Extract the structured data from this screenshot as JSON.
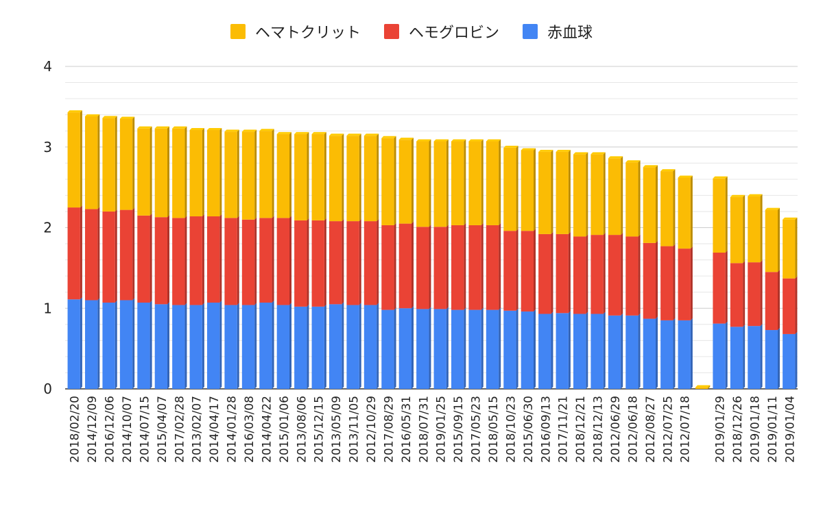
{
  "colors": {
    "hematocrit": "#fbbc04",
    "hemoglobin": "#ea4335",
    "rbc": "#4285f4",
    "grid": "#cccccc",
    "minor_grid": "#e6e6e6"
  },
  "legend": [
    {
      "name": "ヘマトクリット",
      "color": "#fbbc04"
    },
    {
      "name": "ヘモグロビン",
      "color": "#ea4335"
    },
    {
      "name": "赤血球",
      "color": "#4285f4"
    }
  ],
  "chart_data": {
    "type": "bar",
    "stacked": true,
    "grid": true,
    "legend_position": "top",
    "ylim": [
      0,
      4
    ],
    "yticks": [
      0,
      1,
      2,
      3,
      4
    ],
    "categories": [
      "2018/02/20",
      "2014/12/09",
      "2016/12/06",
      "2014/10/07",
      "2014/07/15",
      "2015/04/07",
      "2017/02/28",
      "2013/02/07",
      "2014/04/17",
      "2014/01/28",
      "2016/03/08",
      "2014/04/22",
      "2015/01/06",
      "2013/08/06",
      "2015/12/15",
      "2013/05/09",
      "2013/11/05",
      "2012/10/29",
      "2017/08/29",
      "2016/05/31",
      "2018/07/31",
      "2019/01/25",
      "2015/09/15",
      "2017/05/23",
      "2018/05/15",
      "2018/10/23",
      "2015/06/30",
      "2016/09/13",
      "2017/11/21",
      "2018/12/21",
      "2018/12/13",
      "2012/06/29",
      "2012/06/18",
      "2012/08/27",
      "2012/07/25",
      "2012/07/18",
      "",
      "2019/01/29",
      "2018/12/26",
      "2019/01/18",
      "2019/01/11",
      "2019/01/04"
    ],
    "series": [
      {
        "name": "赤血球",
        "values": [
          1.11,
          1.1,
          1.07,
          1.1,
          1.07,
          1.05,
          1.04,
          1.04,
          1.07,
          1.04,
          1.04,
          1.07,
          1.04,
          1.02,
          1.02,
          1.05,
          1.04,
          1.04,
          0.98,
          1.0,
          0.99,
          0.99,
          0.98,
          0.98,
          0.98,
          0.97,
          0.96,
          0.93,
          0.94,
          0.93,
          0.93,
          0.91,
          0.91,
          0.87,
          0.85,
          0.85,
          0.0,
          0.81,
          0.77,
          0.78,
          0.73,
          0.68
        ]
      },
      {
        "name": "ヘモグロビン",
        "values": [
          1.14,
          1.13,
          1.13,
          1.12,
          1.08,
          1.08,
          1.08,
          1.1,
          1.07,
          1.08,
          1.06,
          1.05,
          1.08,
          1.07,
          1.07,
          1.03,
          1.04,
          1.04,
          1.05,
          1.05,
          1.02,
          1.02,
          1.05,
          1.05,
          1.05,
          0.99,
          1.0,
          0.99,
          0.98,
          0.96,
          0.98,
          1.0,
          0.98,
          0.94,
          0.92,
          0.89,
          0.0,
          0.88,
          0.79,
          0.79,
          0.72,
          0.69
        ]
      },
      {
        "name": "ヘマトクリット",
        "values": [
          1.18,
          1.15,
          1.16,
          1.13,
          1.08,
          1.1,
          1.11,
          1.07,
          1.07,
          1.07,
          1.09,
          1.08,
          1.04,
          1.07,
          1.07,
          1.06,
          1.06,
          1.06,
          1.08,
          1.04,
          1.06,
          1.06,
          1.04,
          1.04,
          1.04,
          1.03,
          1.0,
          1.02,
          1.02,
          1.02,
          1.0,
          0.95,
          0.92,
          0.94,
          0.93,
          0.88,
          0.02,
          0.92,
          0.82,
          0.82,
          0.77,
          0.73
        ]
      }
    ]
  }
}
